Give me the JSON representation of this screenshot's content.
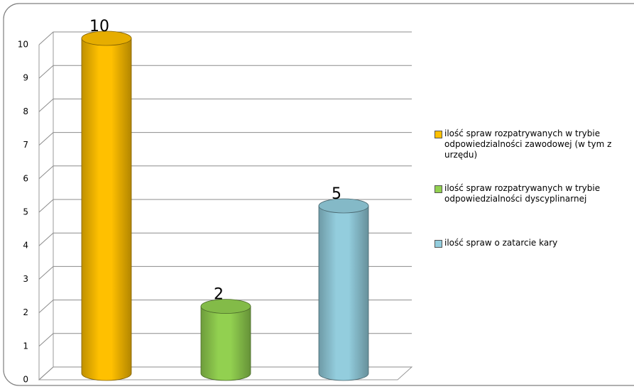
{
  "chart_data": {
    "type": "bar",
    "series": [
      {
        "name": "ilość spraw rozpatrywanych w trybie odpowiedzialności zawodowej (w tym z urzędu)",
        "color": "#FFC000",
        "values": [
          10
        ]
      },
      {
        "name": "ilość spraw rozpatrywanych w trybie odpowiedzialności dyscyplinarnej",
        "color": "#92D050",
        "values": [
          2
        ]
      },
      {
        "name": "ilość spraw o zatarcie kary",
        "color": "#93CDDD",
        "values": [
          5
        ]
      }
    ],
    "ylim": [
      0,
      10
    ],
    "yticks": [
      0,
      1,
      2,
      3,
      4,
      5,
      6,
      7,
      8,
      9,
      10
    ],
    "grid": true,
    "legend": "right"
  }
}
